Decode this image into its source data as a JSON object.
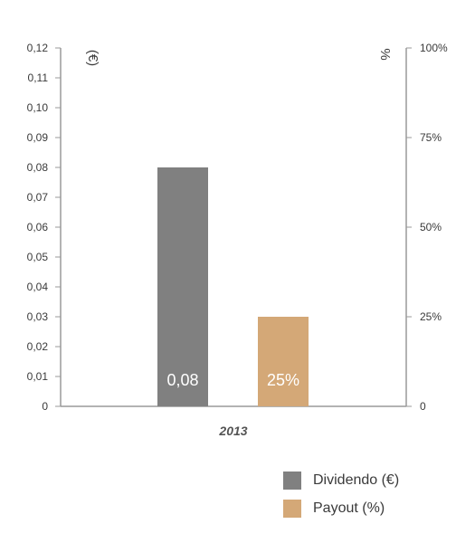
{
  "chart_data": {
    "type": "bar",
    "categories": [
      "2013"
    ],
    "series": [
      {
        "name": "Dividendo (€)",
        "axis": "left",
        "values": [
          0.08
        ],
        "label": "0,08",
        "color": "#808080"
      },
      {
        "name": "Payout (%)",
        "axis": "right",
        "values": [
          25
        ],
        "label": "25%",
        "color": "#d4a877"
      }
    ],
    "left_axis": {
      "unit": "(€)",
      "min": 0,
      "max": 0.12,
      "ticks": [
        {
          "value": 0,
          "label": "0"
        },
        {
          "value": 0.01,
          "label": "0,01"
        },
        {
          "value": 0.02,
          "label": "0,02"
        },
        {
          "value": 0.03,
          "label": "0,03"
        },
        {
          "value": 0.04,
          "label": "0,04"
        },
        {
          "value": 0.05,
          "label": "0,05"
        },
        {
          "value": 0.06,
          "label": "0,06"
        },
        {
          "value": 0.07,
          "label": "0,07"
        },
        {
          "value": 0.08,
          "label": "0,08"
        },
        {
          "value": 0.09,
          "label": "0,09"
        },
        {
          "value": 0.1,
          "label": "0,10"
        },
        {
          "value": 0.11,
          "label": "0,11"
        },
        {
          "value": 0.12,
          "label": "0,12"
        }
      ]
    },
    "right_axis": {
      "unit": "%",
      "min": 0,
      "max": 100,
      "ticks": [
        {
          "value": 0,
          "label": "0"
        },
        {
          "value": 25,
          "label": "25%"
        },
        {
          "value": 50,
          "label": "50%"
        },
        {
          "value": 75,
          "label": "75%"
        },
        {
          "value": 100,
          "label": "100%"
        }
      ]
    },
    "grid": false,
    "legend_position": "bottom-right"
  }
}
